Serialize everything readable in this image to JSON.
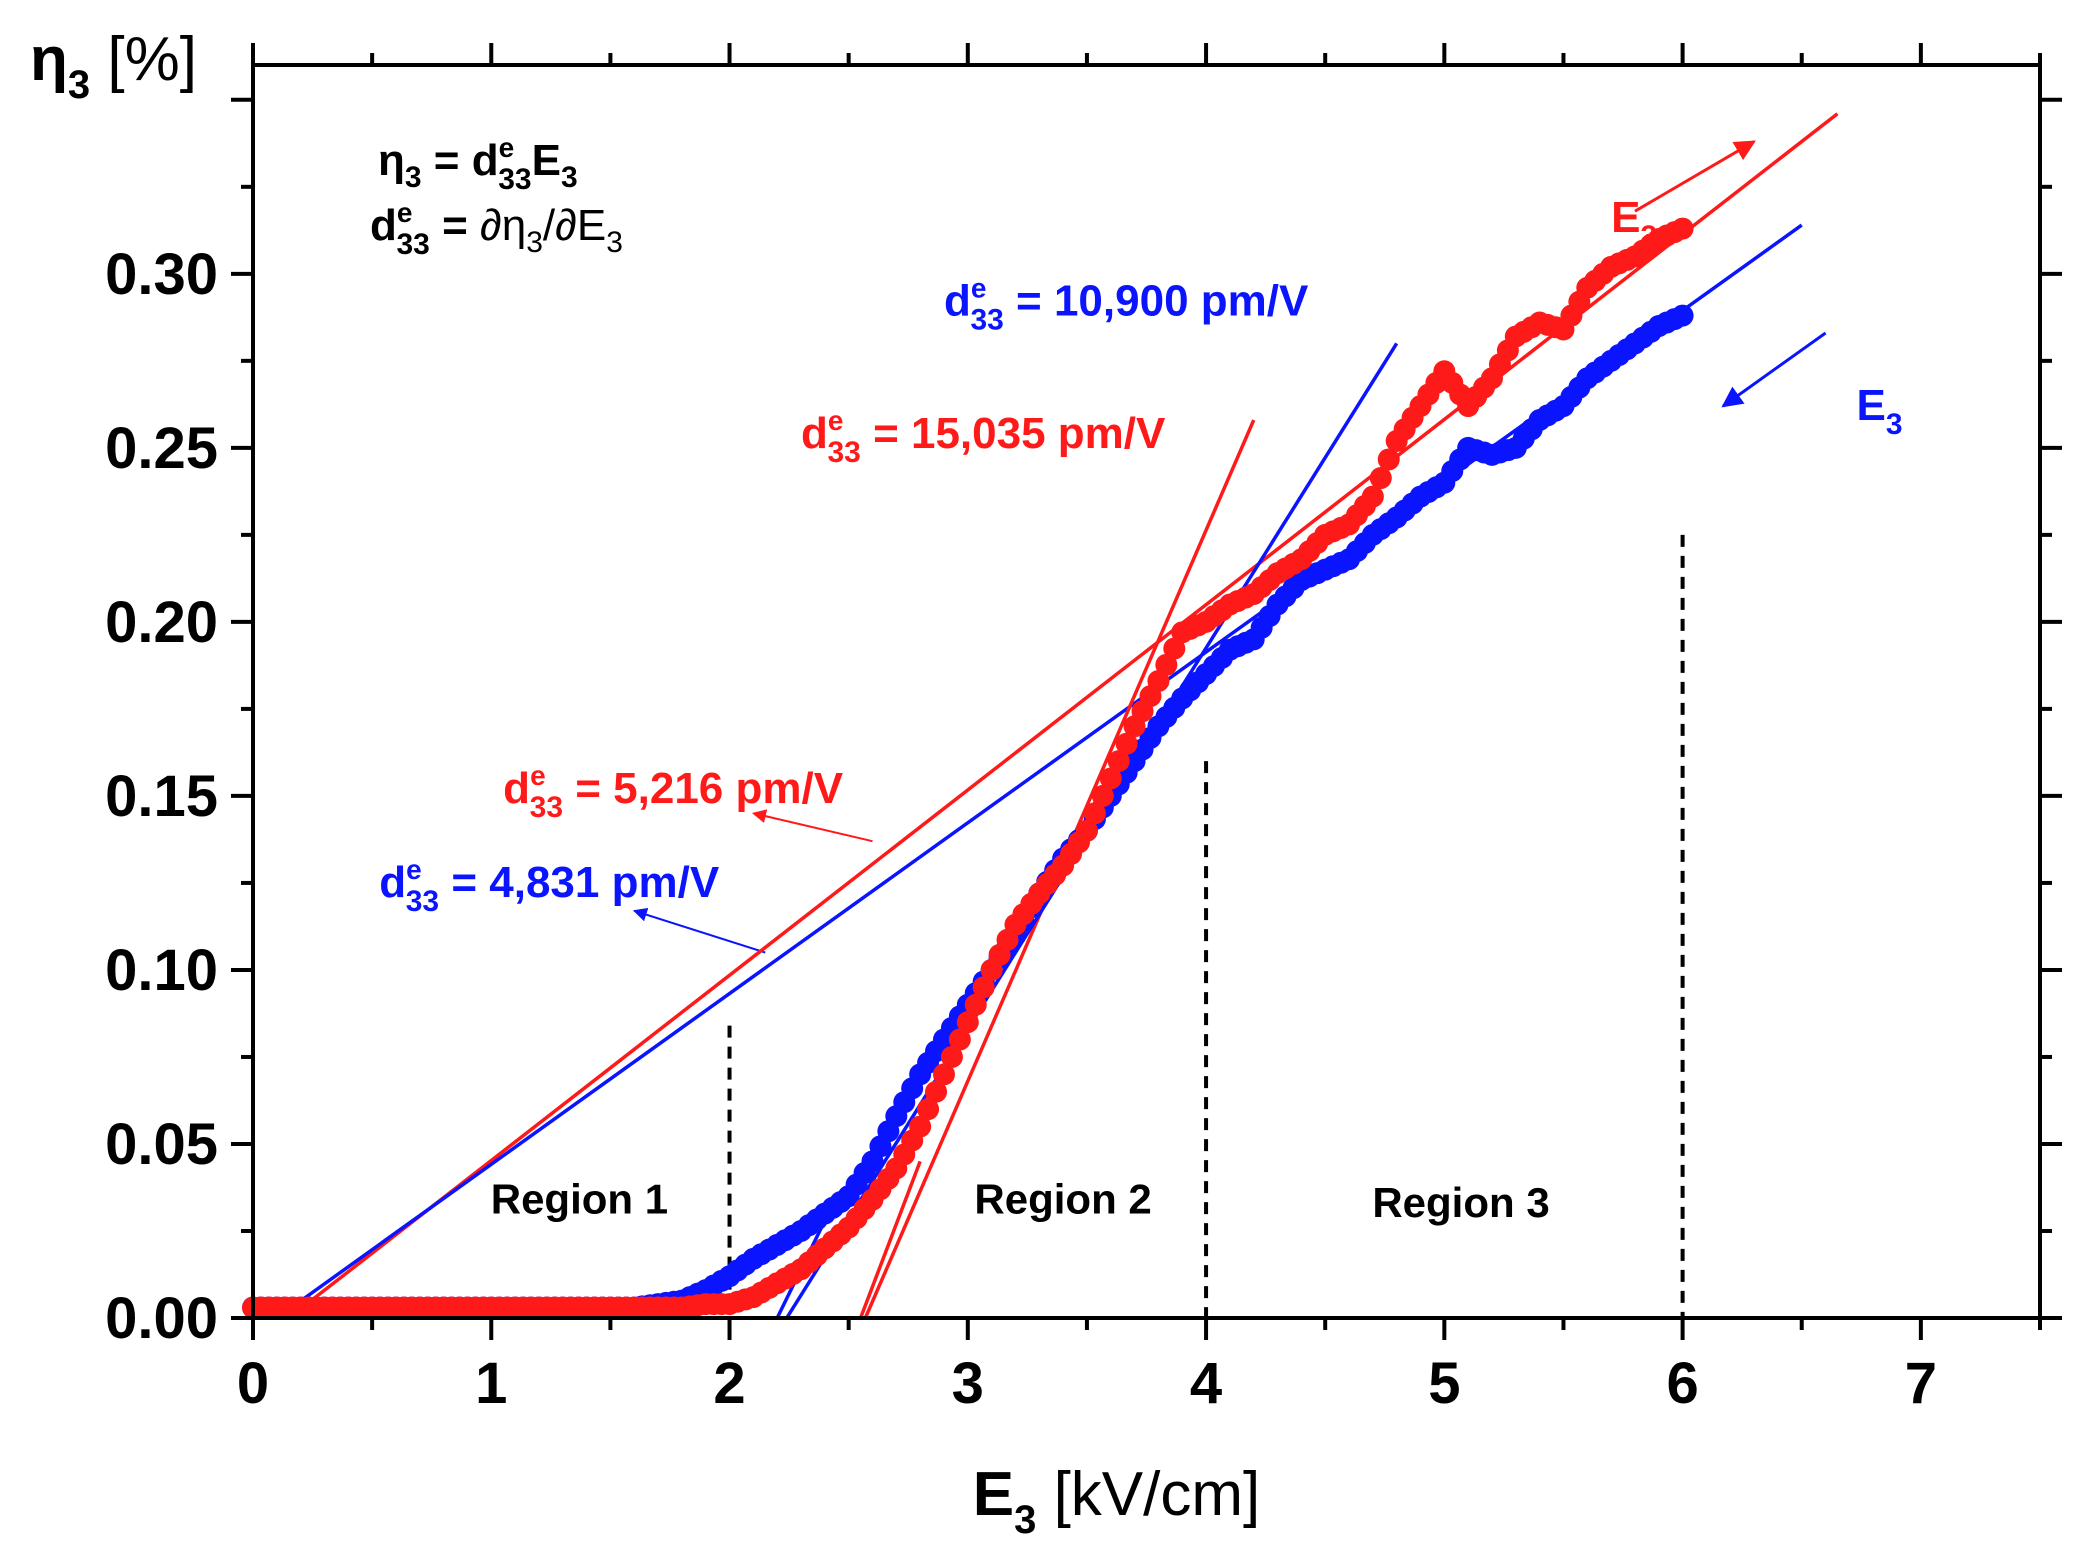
{
  "chart_data": {
    "type": "scatter",
    "title": "",
    "xlabel": {
      "main": "E",
      "sub": "3",
      "unit": " [kV/cm]"
    },
    "ylabel": {
      "main": "η",
      "sub": "3",
      "unit": " [%]"
    },
    "xlim": [
      0,
      7.5
    ],
    "ylim": [
      0,
      0.36
    ],
    "xticks": [
      0,
      1,
      2,
      3,
      4,
      5,
      6,
      7
    ],
    "xtick_labels": [
      "0",
      "1",
      "2",
      "3",
      "4",
      "5",
      "6",
      "7"
    ],
    "yticks": [
      0,
      0.05,
      0.1,
      0.15,
      0.2,
      0.25,
      0.3
    ],
    "ytick_labels": [
      "0.00",
      "0.05",
      "0.10",
      "0.15",
      "0.20",
      "0.25",
      "0.30"
    ],
    "grid": false,
    "colors": {
      "increasing": "#ff1a1a",
      "decreasing": "#0a14ff",
      "axis": "#000000"
    },
    "series": [
      {
        "name": "E3 increasing",
        "color": "#ff1a1a",
        "points": [
          [
            0,
            0.003
          ],
          [
            0.1,
            0.003
          ],
          [
            0.2,
            0.003
          ],
          [
            0.3,
            0.003
          ],
          [
            0.4,
            0.003
          ],
          [
            0.5,
            0.003
          ],
          [
            0.6,
            0.003
          ],
          [
            0.7,
            0.003
          ],
          [
            0.8,
            0.003
          ],
          [
            0.9,
            0.003
          ],
          [
            1.0,
            0.003
          ],
          [
            1.1,
            0.003
          ],
          [
            1.2,
            0.003
          ],
          [
            1.3,
            0.003
          ],
          [
            1.4,
            0.003
          ],
          [
            1.5,
            0.003
          ],
          [
            1.6,
            0.003
          ],
          [
            1.7,
            0.003
          ],
          [
            1.8,
            0.003
          ],
          [
            1.9,
            0.004
          ],
          [
            2.0,
            0.004
          ],
          [
            2.1,
            0.006
          ],
          [
            2.2,
            0.01
          ],
          [
            2.3,
            0.014
          ],
          [
            2.4,
            0.02
          ],
          [
            2.5,
            0.026
          ],
          [
            2.6,
            0.034
          ],
          [
            2.7,
            0.043
          ],
          [
            2.8,
            0.055
          ],
          [
            2.9,
            0.07
          ],
          [
            3.0,
            0.085
          ],
          [
            3.1,
            0.1
          ],
          [
            3.2,
            0.113
          ],
          [
            3.3,
            0.122
          ],
          [
            3.4,
            0.13
          ],
          [
            3.5,
            0.14
          ],
          [
            3.6,
            0.155
          ],
          [
            3.7,
            0.17
          ],
          [
            3.8,
            0.183
          ],
          [
            3.9,
            0.197
          ],
          [
            4.0,
            0.2
          ],
          [
            4.1,
            0.205
          ],
          [
            4.2,
            0.208
          ],
          [
            4.3,
            0.214
          ],
          [
            4.4,
            0.218
          ],
          [
            4.5,
            0.225
          ],
          [
            4.6,
            0.228
          ],
          [
            4.7,
            0.236
          ],
          [
            4.8,
            0.252
          ],
          [
            4.9,
            0.262
          ],
          [
            5.0,
            0.272
          ],
          [
            5.1,
            0.262
          ],
          [
            5.2,
            0.27
          ],
          [
            5.3,
            0.282
          ],
          [
            5.4,
            0.286
          ],
          [
            5.5,
            0.284
          ],
          [
            5.6,
            0.296
          ],
          [
            5.7,
            0.302
          ],
          [
            5.8,
            0.305
          ],
          [
            5.9,
            0.31
          ],
          [
            6.0,
            0.313
          ]
        ]
      },
      {
        "name": "E3 decreasing",
        "color": "#0a14ff",
        "points": [
          [
            0,
            0.003
          ],
          [
            0.1,
            0.003
          ],
          [
            0.2,
            0.003
          ],
          [
            0.3,
            0.003
          ],
          [
            0.4,
            0.003
          ],
          [
            0.5,
            0.003
          ],
          [
            0.6,
            0.003
          ],
          [
            0.7,
            0.003
          ],
          [
            0.8,
            0.003
          ],
          [
            0.9,
            0.003
          ],
          [
            1.0,
            0.003
          ],
          [
            1.1,
            0.003
          ],
          [
            1.2,
            0.003
          ],
          [
            1.3,
            0.003
          ],
          [
            1.4,
            0.003
          ],
          [
            1.5,
            0.003
          ],
          [
            1.6,
            0.003
          ],
          [
            1.7,
            0.004
          ],
          [
            1.8,
            0.005
          ],
          [
            1.9,
            0.008
          ],
          [
            2.0,
            0.012
          ],
          [
            2.1,
            0.017
          ],
          [
            2.2,
            0.021
          ],
          [
            2.3,
            0.025
          ],
          [
            2.4,
            0.03
          ],
          [
            2.5,
            0.035
          ],
          [
            2.6,
            0.045
          ],
          [
            2.7,
            0.058
          ],
          [
            2.8,
            0.07
          ],
          [
            2.9,
            0.08
          ],
          [
            3.0,
            0.09
          ],
          [
            3.1,
            0.1
          ],
          [
            3.2,
            0.11
          ],
          [
            3.3,
            0.122
          ],
          [
            3.4,
            0.132
          ],
          [
            3.5,
            0.14
          ],
          [
            3.6,
            0.15
          ],
          [
            3.7,
            0.16
          ],
          [
            3.8,
            0.17
          ],
          [
            3.9,
            0.178
          ],
          [
            4.0,
            0.185
          ],
          [
            4.1,
            0.192
          ],
          [
            4.2,
            0.195
          ],
          [
            4.3,
            0.205
          ],
          [
            4.4,
            0.212
          ],
          [
            4.5,
            0.215
          ],
          [
            4.6,
            0.218
          ],
          [
            4.7,
            0.225
          ],
          [
            4.8,
            0.23
          ],
          [
            4.9,
            0.236
          ],
          [
            5.0,
            0.24
          ],
          [
            5.1,
            0.25
          ],
          [
            5.2,
            0.248
          ],
          [
            5.3,
            0.25
          ],
          [
            5.4,
            0.258
          ],
          [
            5.5,
            0.262
          ],
          [
            5.6,
            0.27
          ],
          [
            5.7,
            0.275
          ],
          [
            5.8,
            0.28
          ],
          [
            5.9,
            0.285
          ],
          [
            6.0,
            0.288
          ]
        ]
      }
    ],
    "fit_lines": [
      {
        "color": "#ff1a1a",
        "from": [
          0.15,
          0
        ],
        "to": [
          6.65,
          0.346
        ]
      },
      {
        "color": "#0a14ff",
        "from": [
          0.1,
          0
        ],
        "to": [
          6.5,
          0.314
        ]
      },
      {
        "color": "#ff1a1a",
        "from": [
          2.57,
          0
        ],
        "to": [
          4.2,
          0.258
        ]
      },
      {
        "color": "#0a14ff",
        "from": [
          2.24,
          0
        ],
        "to": [
          4.8,
          0.28
        ]
      },
      {
        "color": "#ff1a1a",
        "from": [
          2.55,
          0
        ],
        "to": [
          2.8,
          0.045
        ]
      },
      {
        "color": "#0a14ff",
        "from": [
          2.2,
          0
        ],
        "to": [
          2.45,
          0.035
        ]
      }
    ],
    "region_dividers": [
      {
        "x": 2.0,
        "y_top": 0.084
      },
      {
        "x": 4.0,
        "y_top": 0.16
      },
      {
        "x": 6.0,
        "y_top": 0.225
      }
    ],
    "regions": [
      {
        "label": "Region 1",
        "x": 1.37,
        "y": 0.03
      },
      {
        "label": "Region 2",
        "x": 3.4,
        "y": 0.03
      },
      {
        "label": "Region 3",
        "x": 5.07,
        "y": 0.029
      }
    ],
    "equations": {
      "line1": {
        "lhs_main": "η",
        "lhs_sub": "3",
        "eq": " = ",
        "d": "d",
        "d_sup": "e",
        "d_sub": "33",
        "rhs": "E",
        "rhs_sub": "3"
      },
      "line2": {
        "d": "d",
        "d_sup": "e",
        "d_sub": "33",
        "eq": " =  ",
        "rhs": "∂η",
        "rhs_sub": "3",
        "rhs2": "/∂E",
        "rhs2_sub": "3"
      }
    },
    "slope_labels": [
      {
        "color": "#0a14ff",
        "d": "d",
        "sup": "e",
        "sub": "33",
        "text": "  = 10,900 pm/V",
        "x": 2.9,
        "y": 0.288
      },
      {
        "color": "#ff1a1a",
        "d": "d",
        "sup": "e",
        "sub": "33",
        "text": "  = 15,035 pm/V",
        "x": 2.3,
        "y": 0.25
      },
      {
        "color": "#ff1a1a",
        "d": "d",
        "sup": "e",
        "sub": "33",
        "text": "  = 5,216 pm/V",
        "x": 1.05,
        "y": 0.148
      },
      {
        "color": "#0a14ff",
        "d": "d",
        "sup": "e",
        "sub": "33",
        "text": "  = 4,831 pm/V",
        "x": 0.53,
        "y": 0.121
      }
    ],
    "pointer_arrows": [
      {
        "color": "#ff1a1a",
        "from": [
          2.6,
          0.137
        ],
        "to": [
          2.1,
          0.145
        ]
      },
      {
        "color": "#0a14ff",
        "from": [
          2.15,
          0.105
        ],
        "to": [
          1.6,
          0.117
        ]
      }
    ],
    "direction_arrows": [
      {
        "color": "#ff1a1a",
        "label": "E",
        "sub": "3",
        "from": [
          5.8,
          0.318
        ],
        "to": [
          6.3,
          0.338
        ],
        "label_x": 5.7,
        "label_y": 0.312
      },
      {
        "color": "#0a14ff",
        "label": "E",
        "sub": "3",
        "from": [
          6.6,
          0.283
        ],
        "to": [
          6.17,
          0.262
        ],
        "label_x": 6.73,
        "label_y": 0.258
      }
    ]
  }
}
